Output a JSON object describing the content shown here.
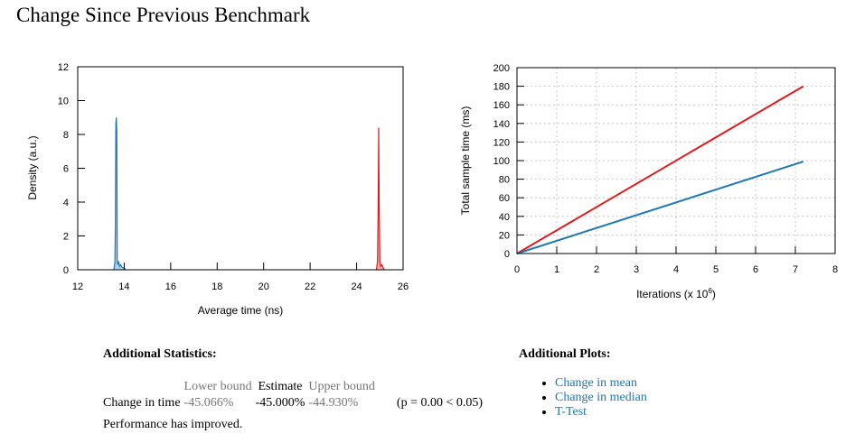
{
  "title": "Change Since Previous Benchmark",
  "chart_data": [
    {
      "type": "area",
      "xlabel": "Average time (ns)",
      "ylabel": "Density (a.u.)",
      "xlim": [
        12,
        26
      ],
      "ylim": [
        0,
        12
      ],
      "x_ticks": [
        12,
        14,
        16,
        18,
        20,
        22,
        24,
        26
      ],
      "y_ticks": [
        0,
        2,
        4,
        6,
        8,
        10,
        12
      ],
      "grid": false,
      "series": [
        {
          "color": "#1f78b4",
          "x": [
            13.55,
            13.6,
            13.62,
            13.64,
            13.66,
            13.68,
            13.7,
            13.72,
            13.76,
            13.8,
            13.85,
            13.9,
            14.0,
            14.05
          ],
          "y": [
            0,
            0.4,
            2.7,
            8.6,
            9.0,
            8.2,
            0.6,
            0.3,
            0.5,
            0.2,
            0.3,
            0.15,
            0.1,
            0
          ]
        },
        {
          "color": "#e31a1c",
          "x": [
            24.85,
            24.9,
            24.93,
            24.95,
            24.97,
            25.0,
            25.03,
            25.08,
            25.15,
            25.2
          ],
          "y": [
            0,
            0.5,
            4.0,
            8.4,
            3.9,
            0.5,
            0.2,
            0.3,
            0.1,
            0
          ]
        }
      ]
    },
    {
      "type": "line",
      "xlabel": "Iterations (x 10",
      "xlabel_exp": "6",
      "ylabel": "Total sample time (ms)",
      "xlim": [
        0,
        8
      ],
      "ylim": [
        0,
        200
      ],
      "x_ticks": [
        0,
        1,
        2,
        3,
        4,
        5,
        6,
        7,
        8
      ],
      "y_ticks": [
        0,
        20,
        40,
        60,
        80,
        100,
        120,
        140,
        160,
        180,
        200
      ],
      "grid": true,
      "series": [
        {
          "color": "#e31a1c",
          "x": [
            0,
            7.2
          ],
          "y": [
            0,
            180
          ]
        },
        {
          "color": "#1f78b4",
          "x": [
            0,
            7.2
          ],
          "y": [
            0,
            99
          ]
        }
      ]
    }
  ],
  "stats": {
    "heading": "Additional Statistics:",
    "headers": [
      "Lower bound",
      "Estimate",
      "Upper bound"
    ],
    "row_label": "Change in time",
    "lower": "-45.066%",
    "estimate": "-45.000%",
    "upper": "-44.930%",
    "pvalue": "(p = 0.00 < 0.05)",
    "verdict": "Performance has improved."
  },
  "plots": {
    "heading": "Additional Plots:",
    "links": [
      "Change in mean",
      "Change in median",
      "T-Test"
    ]
  }
}
